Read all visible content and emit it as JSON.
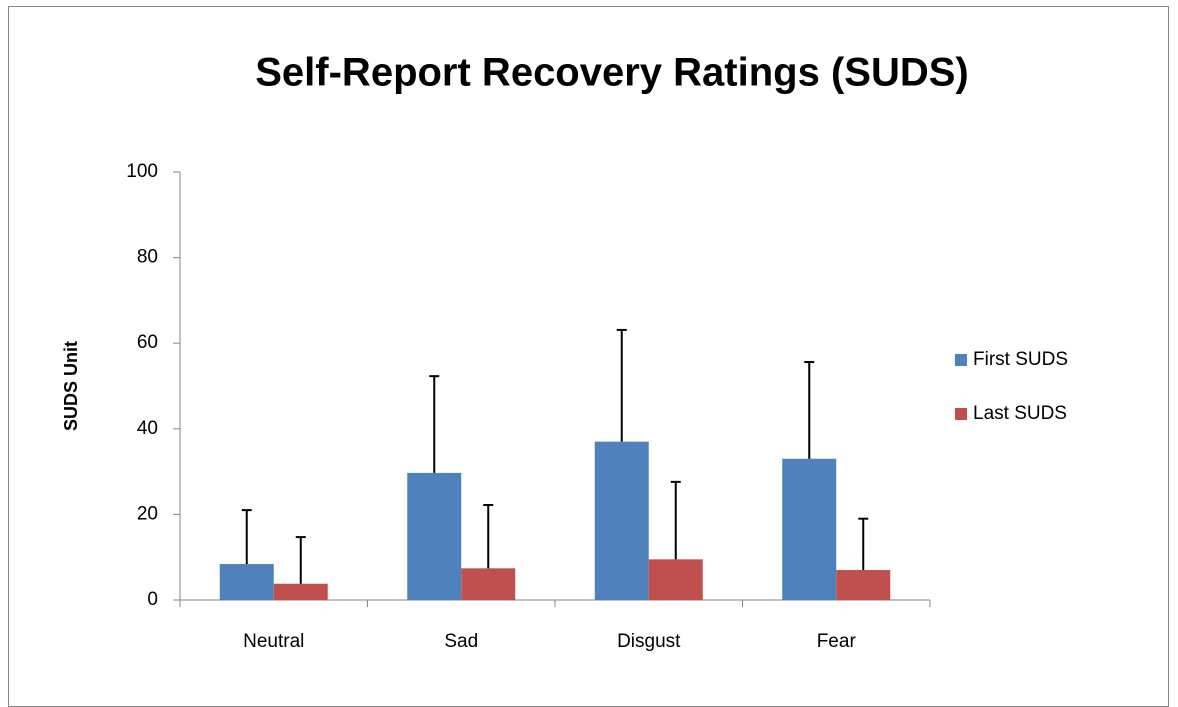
{
  "chart_data": {
    "type": "bar",
    "title": "Self-Report Recovery Ratings (SUDS)",
    "y_label": "SUDS Unit",
    "categories": [
      "Neutral",
      "Sad",
      "Disgust",
      "Fear"
    ],
    "series": [
      {
        "name": "First SUDS",
        "color": "#4f81bd",
        "values": [
          8.4,
          29.7,
          37,
          33
        ],
        "errors": [
          12.6,
          22.6,
          26.1,
          22.6
        ]
      },
      {
        "name": "Last SUDS",
        "color": "#c0504d",
        "values": [
          3.8,
          7.4,
          9.5,
          7
        ],
        "errors": [
          10.9,
          14.8,
          18.1,
          12
        ]
      }
    ],
    "ylim": [
      0,
      100
    ],
    "yticks": [
      0,
      20,
      40,
      60,
      80,
      100
    ],
    "legend": "right"
  }
}
